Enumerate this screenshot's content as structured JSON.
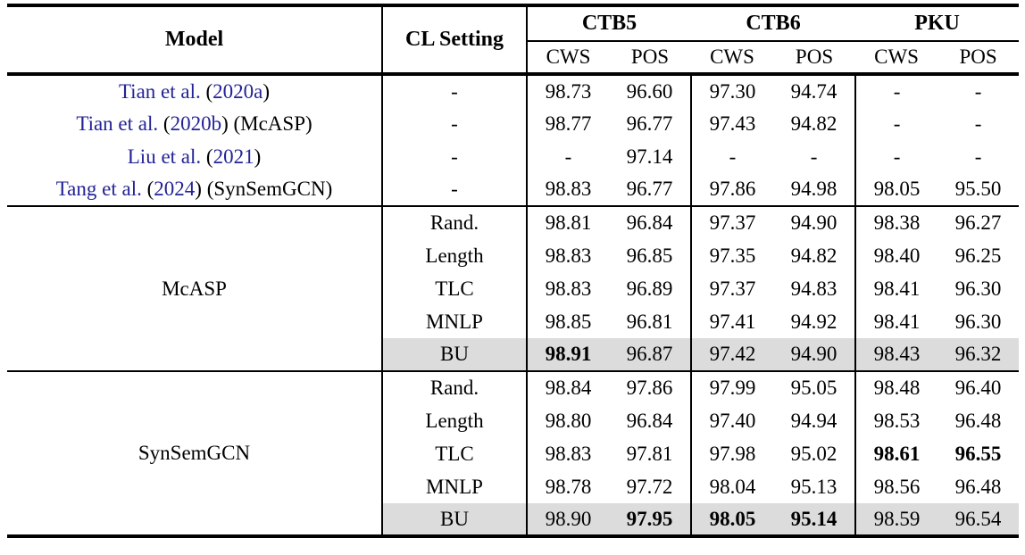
{
  "table": {
    "header": {
      "model": "Model",
      "cl_setting": "CL Setting",
      "groups": [
        {
          "label": "CTB5"
        },
        {
          "label": "CTB6"
        },
        {
          "label": "PKU"
        }
      ],
      "subcols": [
        "CWS",
        "POS"
      ]
    },
    "colors": {
      "citation_link": "#232396",
      "highlight_row": "#dcdcdc",
      "border": "#000000"
    },
    "sections": [
      {
        "type": "citations",
        "rows": [
          {
            "model_parts": [
              {
                "text": "Tian et al.",
                "link": true
              },
              {
                "text": " (",
                "link": false
              },
              {
                "text": "2020a",
                "link": true
              },
              {
                "text": ")",
                "link": false
              }
            ],
            "cl": "-",
            "values": [
              {
                "v": "98.73"
              },
              {
                "v": "96.60"
              },
              {
                "v": "97.30"
              },
              {
                "v": "94.74"
              },
              {
                "v": "-"
              },
              {
                "v": "-"
              }
            ]
          },
          {
            "model_parts": [
              {
                "text": "Tian et al.",
                "link": true
              },
              {
                "text": " (",
                "link": false
              },
              {
                "text": "2020b",
                "link": true
              },
              {
                "text": ")",
                "link": false
              },
              {
                "text": " (McASP)",
                "link": false
              }
            ],
            "cl": "-",
            "values": [
              {
                "v": "98.77"
              },
              {
                "v": "96.77"
              },
              {
                "v": "97.43"
              },
              {
                "v": "94.82"
              },
              {
                "v": "-"
              },
              {
                "v": "-"
              }
            ]
          },
          {
            "model_parts": [
              {
                "text": "Liu et al.",
                "link": true
              },
              {
                "text": " (",
                "link": false
              },
              {
                "text": "2021",
                "link": true
              },
              {
                "text": ")",
                "link": false
              }
            ],
            "cl": "-",
            "values": [
              {
                "v": "-"
              },
              {
                "v": "97.14"
              },
              {
                "v": "-"
              },
              {
                "v": "-"
              },
              {
                "v": "-"
              },
              {
                "v": "-"
              }
            ]
          },
          {
            "model_parts": [
              {
                "text": "Tang et al.",
                "link": true
              },
              {
                "text": " (",
                "link": false
              },
              {
                "text": "2024",
                "link": true
              },
              {
                "text": ")",
                "link": false
              },
              {
                "text": " (SynSemGCN)",
                "link": false
              }
            ],
            "cl": "-",
            "values": [
              {
                "v": "98.83"
              },
              {
                "v": "96.77"
              },
              {
                "v": "97.86"
              },
              {
                "v": "94.98"
              },
              {
                "v": "98.05"
              },
              {
                "v": "95.50"
              }
            ]
          }
        ]
      },
      {
        "type": "group",
        "model": "McASP",
        "rows": [
          {
            "cl": "Rand.",
            "values": [
              {
                "v": "98.81"
              },
              {
                "v": "96.84"
              },
              {
                "v": "97.37"
              },
              {
                "v": "94.90"
              },
              {
                "v": "98.38"
              },
              {
                "v": "96.27"
              }
            ]
          },
          {
            "cl": "Length",
            "values": [
              {
                "v": "98.83"
              },
              {
                "v": "96.85"
              },
              {
                "v": "97.35"
              },
              {
                "v": "94.82"
              },
              {
                "v": "98.40"
              },
              {
                "v": "96.25"
              }
            ]
          },
          {
            "cl": "TLC",
            "values": [
              {
                "v": "98.83"
              },
              {
                "v": "96.89"
              },
              {
                "v": "97.37"
              },
              {
                "v": "94.83"
              },
              {
                "v": "98.41"
              },
              {
                "v": "96.30"
              }
            ]
          },
          {
            "cl": "MNLP",
            "values": [
              {
                "v": "98.85"
              },
              {
                "v": "96.81"
              },
              {
                "v": "97.41"
              },
              {
                "v": "94.92"
              },
              {
                "v": "98.41"
              },
              {
                "v": "96.30"
              }
            ]
          },
          {
            "cl": "BU",
            "highlight": true,
            "values": [
              {
                "v": "98.91",
                "b": true
              },
              {
                "v": "96.87"
              },
              {
                "v": "97.42"
              },
              {
                "v": "94.90"
              },
              {
                "v": "98.43"
              },
              {
                "v": "96.32"
              }
            ]
          }
        ]
      },
      {
        "type": "group",
        "model": "SynSemGCN",
        "rows": [
          {
            "cl": "Rand.",
            "values": [
              {
                "v": "98.84"
              },
              {
                "v": "97.86"
              },
              {
                "v": "97.99"
              },
              {
                "v": "95.05"
              },
              {
                "v": "98.48"
              },
              {
                "v": "96.40"
              }
            ]
          },
          {
            "cl": "Length",
            "values": [
              {
                "v": "98.80"
              },
              {
                "v": "96.84"
              },
              {
                "v": "97.40"
              },
              {
                "v": "94.94"
              },
              {
                "v": "98.53"
              },
              {
                "v": "96.48"
              }
            ]
          },
          {
            "cl": "TLC",
            "values": [
              {
                "v": "98.83"
              },
              {
                "v": "97.81"
              },
              {
                "v": "97.98"
              },
              {
                "v": "95.02"
              },
              {
                "v": "98.61",
                "b": true
              },
              {
                "v": "96.55",
                "b": true
              }
            ]
          },
          {
            "cl": "MNLP",
            "values": [
              {
                "v": "98.78"
              },
              {
                "v": "97.72"
              },
              {
                "v": "98.04"
              },
              {
                "v": "95.13"
              },
              {
                "v": "98.56"
              },
              {
                "v": "96.48"
              }
            ]
          },
          {
            "cl": "BU",
            "highlight": true,
            "values": [
              {
                "v": "98.90"
              },
              {
                "v": "97.95",
                "b": true
              },
              {
                "v": "98.05",
                "b": true
              },
              {
                "v": "95.14",
                "b": true
              },
              {
                "v": "98.59"
              },
              {
                "v": "96.54"
              }
            ]
          }
        ]
      }
    ]
  }
}
